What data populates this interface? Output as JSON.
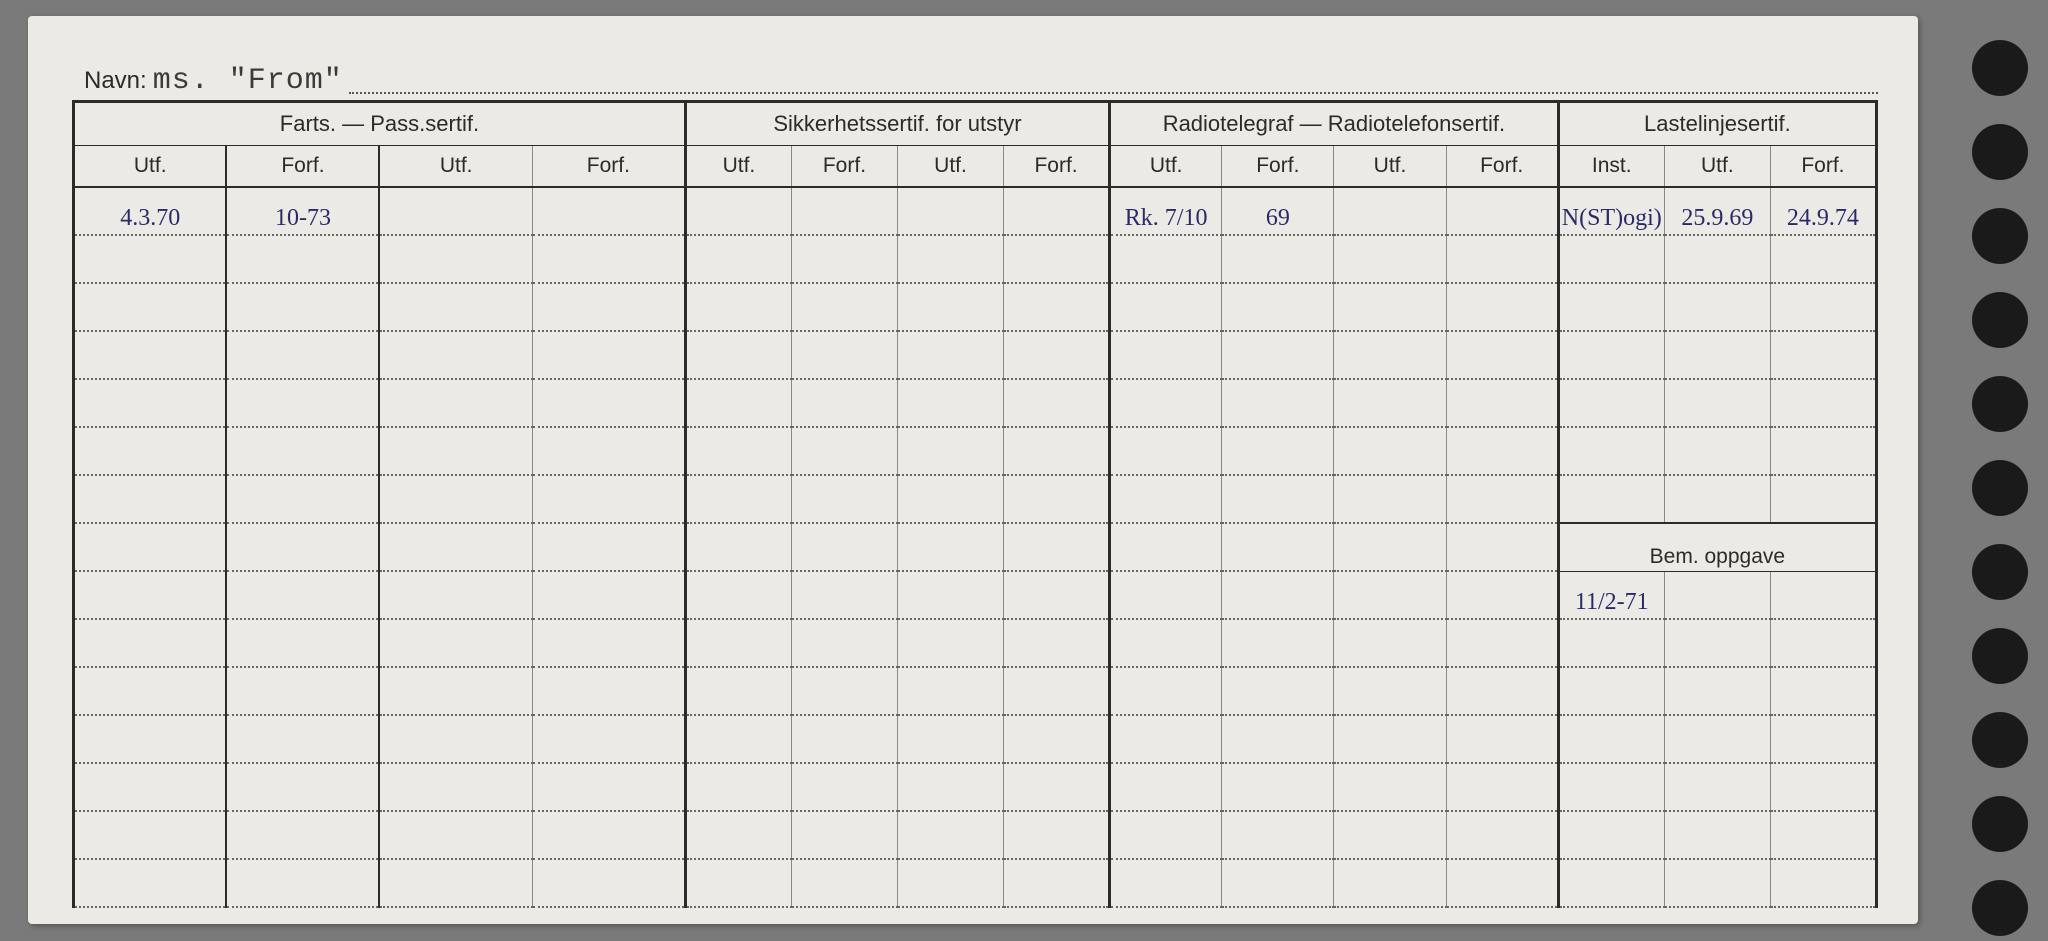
{
  "navn_label": "Navn:",
  "navn_value": "ms. \"From\"",
  "groups": {
    "farts": "Farts. — Pass.sertif.",
    "sikkerhet": "Sikkerhetssertif. for utstyr",
    "radio": "Radiotelegraf — Radiotelefonsertif.",
    "lastelinje": "Lastelinjesertif."
  },
  "sub": {
    "utf": "Utf.",
    "forf": "Forf.",
    "inst": "Inst."
  },
  "bem_label": "Bem. oppgave",
  "row1": {
    "farts_utf1": "4.3.70",
    "farts_forf1": "10-73",
    "radio_utf1": "Rk. 7/10",
    "radio_forf1": "69",
    "last_inst": "N(ST)ogi)",
    "last_utf": "25.9.69",
    "last_forf": "24.9.74"
  },
  "bem_row": {
    "c1": "11/2-71"
  },
  "main_rows": 16,
  "bem_rows": 5,
  "colors": {
    "card_bg": "#eceae4",
    "line": "#2b2b2b",
    "ink": "#2a2a6a"
  }
}
